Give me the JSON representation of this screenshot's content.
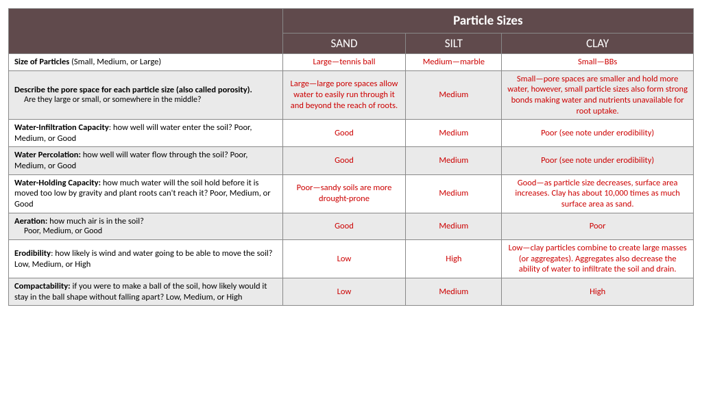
{
  "header": {
    "title": "Particle Sizes",
    "cols": [
      "SAND",
      "SILT",
      "CLAY"
    ]
  },
  "rows": [
    {
      "label_bold": "Size of Particles",
      "label_plain": " (Small, Medium, or Large)",
      "sub": "",
      "sand": "Large—tennis ball",
      "silt": "Medium—marble",
      "clay": "Small—BBs",
      "shade": false
    },
    {
      "label_bold": "Describe the pore space for each particle size (also called porosity).",
      "label_plain": "",
      "sub": "Are they large or small, or somewhere in the middle?",
      "sand": "Large—large pore spaces allow water to easily run through it and beyond the reach of roots.",
      "silt": "Medium",
      "clay": "Small—pore spaces are smaller and hold more water, however, small particle sizes also form strong bonds making water and nutrients unavailable for root uptake.",
      "shade": true
    },
    {
      "label_bold": "Water-Infiltration Capacity",
      "label_plain": ": how well will water enter the soil?      Poor, Medium, or Good",
      "sub": "",
      "sand": "Good",
      "silt": "Medium",
      "clay": "Poor (see note under erodibility)",
      "shade": false
    },
    {
      "label_bold": "Water Percolation:",
      "label_plain": " how well will water flow through the soil?      Poor, Medium, or Good",
      "sub": "",
      "sand": "Good",
      "silt": "Medium",
      "clay": "Poor (see note under erodibility)",
      "shade": true
    },
    {
      "label_bold": "Water-Holding Capacity:",
      "label_plain": " how much water will the soil hold before it is moved too low by gravity and plant roots can't reach it?      Poor, Medium, or Good",
      "sub": "",
      "sand": "Poor—sandy soils are more drought-prone",
      "silt": "Medium",
      "clay": "Good—as particle size decreases, surface area increases.  Clay has about 10,000 times as much surface area as sand.",
      "shade": false
    },
    {
      "label_bold": "Aeration:",
      "label_plain": " how much air is in the soil?",
      "sub": "Poor, Medium, or Good",
      "sand": "Good",
      "silt": "Medium",
      "clay": "Poor",
      "shade": true
    },
    {
      "label_bold": "Erodibility",
      "label_plain": ": how likely is wind and water going to be able to move the soil?            Low, Medium, or High",
      "sub": "",
      "sand": "Low",
      "silt": "High",
      "clay": "Low—clay particles combine to create large masses (or aggregates).  Aggregates also decrease the ability of water to infiltrate the soil and drain.",
      "shade": false
    },
    {
      "label_bold": "Compactability:",
      "label_plain": " if you were to make a ball of the soil, how likely would it stay in the ball shape without falling apart?      Low, Medium, or High",
      "sub": "",
      "sand": "Low",
      "silt": "Medium",
      "clay": "High",
      "shade": true
    }
  ]
}
